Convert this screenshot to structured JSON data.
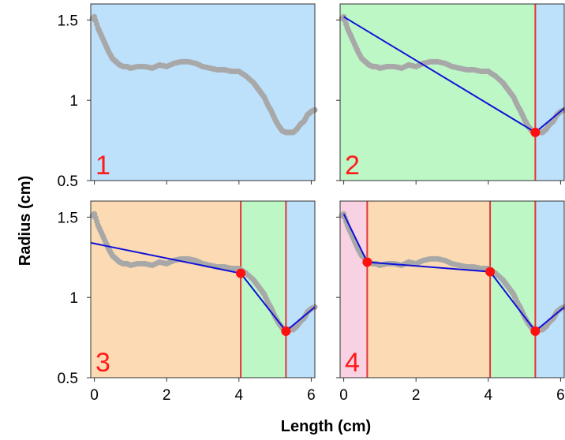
{
  "figure": {
    "xlabel": "Length (cm)",
    "ylabel": "Radius (cm)"
  },
  "colors": {
    "segment_blue": "#bde0fb",
    "segment_green": "#bdf7c6",
    "segment_orange": "#fcdbb4",
    "segment_pink": "#f8d1e3",
    "data_gray": "#a8a8a8",
    "fit_line": "#1010d8",
    "breakpoint": "#ff1010",
    "breakpoint_line": "#e03838",
    "panel_number": "#ff1a1a"
  },
  "chart_data": [
    {
      "type": "scatter",
      "panel_label": "1",
      "xlim": [
        -0.1,
        6.1
      ],
      "ylim": [
        0.5,
        1.6
      ],
      "xticks": [
        "0",
        "2",
        "4",
        "6"
      ],
      "yticks": [
        "0.5",
        "1",
        "1.5"
      ],
      "segments": [
        {
          "from": -0.1,
          "to": 6.1,
          "color": "blue"
        }
      ],
      "breakpoints": [],
      "fit_line": []
    },
    {
      "type": "scatter",
      "panel_label": "2",
      "xlim": [
        -0.1,
        6.1
      ],
      "ylim": [
        0.5,
        1.6
      ],
      "xticks": [
        "0",
        "2",
        "4",
        "6"
      ],
      "yticks": [
        "0.5",
        "1",
        "1.5"
      ],
      "segments": [
        {
          "from": -0.1,
          "to": 5.3,
          "color": "green"
        },
        {
          "from": 5.3,
          "to": 6.1,
          "color": "blue"
        }
      ],
      "breakpoints": [
        {
          "x": 5.3,
          "y": 0.8
        }
      ],
      "fit_line": [
        [
          0.0,
          1.52
        ],
        [
          5.3,
          0.8
        ],
        [
          6.1,
          0.95
        ]
      ]
    },
    {
      "type": "scatter",
      "panel_label": "3",
      "xlim": [
        -0.1,
        6.1
      ],
      "ylim": [
        0.5,
        1.6
      ],
      "xticks": [
        "0",
        "2",
        "4",
        "6"
      ],
      "yticks": [
        "0.5",
        "1",
        "1.5"
      ],
      "segments": [
        {
          "from": -0.1,
          "to": 4.05,
          "color": "orange"
        },
        {
          "from": 4.05,
          "to": 5.3,
          "color": "green"
        },
        {
          "from": 5.3,
          "to": 6.1,
          "color": "blue"
        }
      ],
      "breakpoints": [
        {
          "x": 4.05,
          "y": 1.15
        },
        {
          "x": 5.3,
          "y": 0.79
        }
      ],
      "fit_line": [
        [
          -0.1,
          1.34
        ],
        [
          4.05,
          1.15
        ],
        [
          5.3,
          0.79
        ],
        [
          6.1,
          0.94
        ]
      ]
    },
    {
      "type": "scatter",
      "panel_label": "4",
      "xlim": [
        -0.1,
        6.1
      ],
      "ylim": [
        0.5,
        1.6
      ],
      "xticks": [
        "0",
        "2",
        "4",
        "6"
      ],
      "yticks": [
        "0.5",
        "1",
        "1.5"
      ],
      "segments": [
        {
          "from": -0.1,
          "to": 0.65,
          "color": "pink"
        },
        {
          "from": 0.65,
          "to": 4.05,
          "color": "orange"
        },
        {
          "from": 4.05,
          "to": 5.3,
          "color": "green"
        },
        {
          "from": 5.3,
          "to": 6.1,
          "color": "blue"
        }
      ],
      "breakpoints": [
        {
          "x": 0.65,
          "y": 1.22
        },
        {
          "x": 4.05,
          "y": 1.16
        },
        {
          "x": 5.3,
          "y": 0.79
        }
      ],
      "fit_line": [
        [
          0.0,
          1.52
        ],
        [
          0.65,
          1.22
        ],
        [
          4.05,
          1.16
        ],
        [
          5.3,
          0.79
        ],
        [
          6.1,
          0.94
        ]
      ]
    }
  ],
  "profile_data": {
    "x": [
      -0.05,
      0.0,
      0.1,
      0.2,
      0.3,
      0.4,
      0.5,
      0.6,
      0.7,
      0.8,
      0.9,
      1.0,
      1.2,
      1.4,
      1.6,
      1.8,
      2.0,
      2.2,
      2.4,
      2.6,
      2.8,
      3.0,
      3.2,
      3.4,
      3.6,
      3.8,
      4.0,
      4.2,
      4.4,
      4.5,
      4.6,
      4.7,
      4.8,
      4.9,
      5.0,
      5.1,
      5.2,
      5.3,
      5.4,
      5.5,
      5.6,
      5.7,
      5.8,
      5.9,
      6.0,
      6.1
    ],
    "y": [
      1.51,
      1.52,
      1.45,
      1.4,
      1.35,
      1.3,
      1.26,
      1.24,
      1.22,
      1.21,
      1.21,
      1.2,
      1.21,
      1.21,
      1.2,
      1.22,
      1.21,
      1.23,
      1.24,
      1.24,
      1.23,
      1.21,
      1.2,
      1.19,
      1.19,
      1.18,
      1.18,
      1.15,
      1.11,
      1.08,
      1.05,
      1.02,
      0.97,
      0.93,
      0.88,
      0.84,
      0.81,
      0.8,
      0.8,
      0.8,
      0.82,
      0.85,
      0.87,
      0.91,
      0.93,
      0.94
    ]
  }
}
